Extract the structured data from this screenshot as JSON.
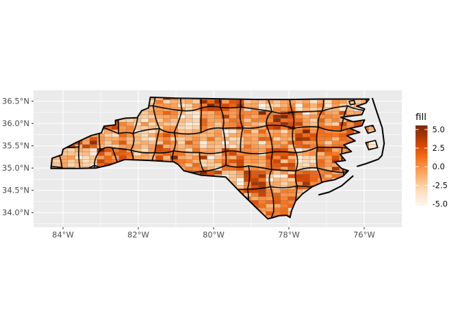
{
  "chart_data": {
    "type": "heatmap",
    "subtype": "choropleth_map",
    "title": "",
    "region": "North Carolina counties with random raster fill",
    "x_axis": {
      "tick_lons": [
        -84,
        -82,
        -80,
        -78,
        -76
      ],
      "tick_labels": [
        "84°W",
        "82°W",
        "80°W",
        "78°W",
        "76°W"
      ],
      "minor_lons": [
        -83,
        -81,
        -79,
        -77
      ],
      "range_lon": [
        -84.782,
        -75.0
      ]
    },
    "y_axis": {
      "tick_lats": [
        36.5,
        36.0,
        35.5,
        35.0,
        34.5,
        34.0
      ],
      "tick_labels": [
        "36.5°N",
        "36.0°N",
        "35.5°N",
        "35.0°N",
        "34.5°N",
        "34.0°N"
      ],
      "minor_lats": [
        36.75,
        36.25,
        35.75,
        35.25,
        34.75,
        34.25,
        33.75
      ],
      "range_lat": [
        33.672,
        36.757
      ]
    },
    "legend": {
      "title": "fill",
      "ticks": [
        5.0,
        2.5,
        0.0,
        -2.5,
        -5.0
      ],
      "tick_labels": [
        "5.0",
        "2.5",
        "0.0",
        "-2.5",
        "-5.0"
      ],
      "limits": [
        -5.23,
        5.55
      ],
      "palette": "Oranges",
      "gradient_stops": [
        "#fff5eb",
        "#fee6ce",
        "#fdd0a2",
        "#fdae6b",
        "#fd8d3c",
        "#f16913",
        "#d94801",
        "#a63603",
        "#7f2704"
      ]
    },
    "fill_field": {
      "seed": 7,
      "cell_lon": 0.195,
      "cell_lat": 0.0835,
      "county_base_range": [
        -2.7,
        2.7
      ],
      "cell_noise_sd": 1.3
    },
    "style": {
      "panel_bg": "#EBEBEB",
      "grid_color": "#FFFFFF",
      "axis_text_color": "#4D4D4D",
      "tick_mark_color": "#333333",
      "county_border_color": "#050505",
      "cell_border_rgba": "rgba(105,105,105,0.42)",
      "figure_bg": "#FFFFFF"
    },
    "geometry": {
      "state_outline": [
        [
          -81.68,
          36.59
        ],
        [
          -81.0,
          36.57
        ],
        [
          -80.3,
          36.56
        ],
        [
          -79.5,
          36.55
        ],
        [
          -78.8,
          36.54
        ],
        [
          -78.0,
          36.54
        ],
        [
          -77.2,
          36.55
        ],
        [
          -76.55,
          36.55
        ],
        [
          -75.87,
          36.55
        ],
        [
          -75.95,
          36.46
        ],
        [
          -76.2,
          36.39
        ],
        [
          -75.99,
          36.33
        ],
        [
          -76.06,
          36.2
        ],
        [
          -76.62,
          36.14
        ],
        [
          -76.3,
          36.04
        ],
        [
          -75.99,
          36.08
        ],
        [
          -76.06,
          35.95
        ],
        [
          -76.38,
          35.89
        ],
        [
          -76.12,
          35.8
        ],
        [
          -76.46,
          35.73
        ],
        [
          -76.24,
          35.61
        ],
        [
          -76.54,
          35.52
        ],
        [
          -76.34,
          35.37
        ],
        [
          -76.64,
          35.31
        ],
        [
          -76.5,
          35.17
        ],
        [
          -76.78,
          35.14
        ],
        [
          -76.6,
          34.99
        ],
        [
          -76.42,
          34.94
        ],
        [
          -76.56,
          34.82
        ],
        [
          -76.78,
          34.74
        ],
        [
          -77.08,
          34.69
        ],
        [
          -77.38,
          34.58
        ],
        [
          -77.64,
          34.42
        ],
        [
          -77.82,
          34.26
        ],
        [
          -77.93,
          34.04
        ],
        [
          -77.97,
          33.89
        ],
        [
          -78.06,
          33.94
        ],
        [
          -78.26,
          33.93
        ],
        [
          -78.46,
          33.88
        ],
        [
          -78.56,
          33.86
        ],
        [
          -78.88,
          34.12
        ],
        [
          -79.28,
          34.45
        ],
        [
          -79.68,
          34.8
        ],
        [
          -80.33,
          34.84
        ],
        [
          -80.79,
          34.94
        ],
        [
          -80.94,
          35.08
        ],
        [
          -81.06,
          35.14
        ],
        [
          -81.7,
          35.17
        ],
        [
          -82.36,
          35.19
        ],
        [
          -82.76,
          35.07
        ],
        [
          -83.12,
          35.0
        ],
        [
          -83.62,
          34.99
        ],
        [
          -84.05,
          34.99
        ],
        [
          -84.32,
          34.99
        ],
        [
          -84.29,
          35.22
        ],
        [
          -84.03,
          35.3
        ],
        [
          -84.0,
          35.42
        ],
        [
          -83.66,
          35.57
        ],
        [
          -83.25,
          35.73
        ],
        [
          -82.98,
          35.79
        ],
        [
          -82.91,
          35.94
        ],
        [
          -82.6,
          35.97
        ],
        [
          -82.61,
          36.07
        ],
        [
          -82.34,
          36.12
        ],
        [
          -82.03,
          36.13
        ],
        [
          -81.91,
          36.29
        ],
        [
          -81.73,
          36.35
        ]
      ],
      "islands": [
        [
          [
            -76.4,
            36.5
          ],
          [
            -76.27,
            36.52
          ],
          [
            -76.24,
            36.44
          ],
          [
            -76.37,
            36.42
          ]
        ],
        [
          [
            -75.98,
            35.92
          ],
          [
            -75.77,
            35.96
          ],
          [
            -75.7,
            35.83
          ],
          [
            -75.9,
            35.78
          ]
        ],
        [
          [
            -75.96,
            35.57
          ],
          [
            -75.7,
            35.62
          ],
          [
            -75.64,
            35.46
          ],
          [
            -75.88,
            35.41
          ]
        ]
      ],
      "barrier_islands": [
        [
          [
            -75.78,
            36.56
          ],
          [
            -75.66,
            36.25
          ],
          [
            -75.52,
            35.9
          ],
          [
            -75.47,
            35.55
          ],
          [
            -75.53,
            35.28
          ],
          [
            -75.62,
            35.2
          ],
          [
            -75.95,
            35.1
          ],
          [
            -76.18,
            35.04
          ]
        ],
        [
          [
            -76.3,
            34.82
          ],
          [
            -76.6,
            34.6
          ],
          [
            -76.93,
            34.46
          ],
          [
            -77.2,
            34.4
          ]
        ]
      ]
    }
  }
}
